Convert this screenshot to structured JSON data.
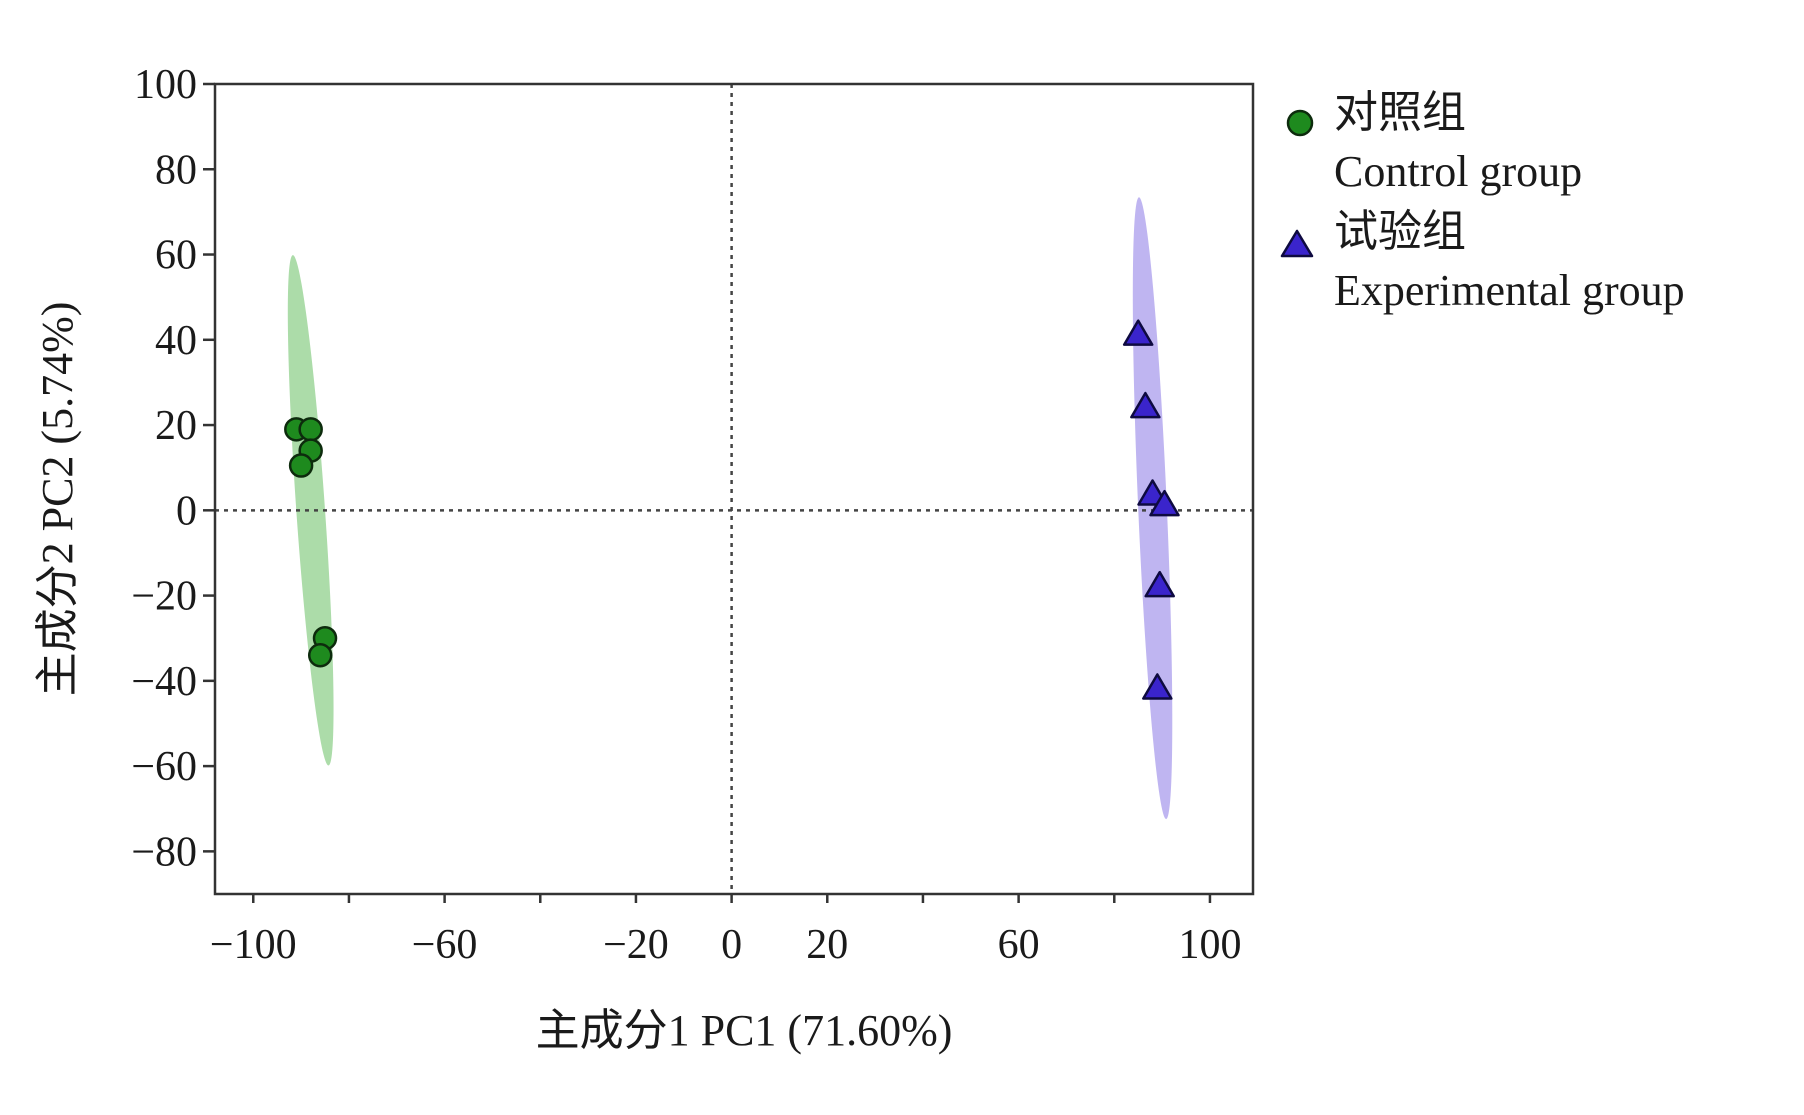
{
  "chart_data": {
    "type": "scatter",
    "xlabel": "主成分1 PC1 (71.60%)",
    "ylabel": "主成分2 PC2 (5.74%)",
    "xlim": [
      -108,
      109
    ],
    "ylim": [
      -90,
      100
    ],
    "x_ticks": [
      -100,
      -80,
      -60,
      -40,
      -20,
      0,
      20,
      40,
      60,
      80,
      100
    ],
    "x_tick_labels": [
      "−100",
      "",
      "−60",
      "",
      "−20",
      "0",
      "20",
      "",
      "60",
      "",
      "100"
    ],
    "y_ticks": [
      -80,
      -60,
      -40,
      -20,
      0,
      20,
      40,
      60,
      80,
      100
    ],
    "y_tick_labels": [
      "−80",
      "−60",
      "−40",
      "−20",
      "0",
      "20",
      "40",
      "60",
      "80",
      "100"
    ],
    "reference_lines": {
      "x": 0,
      "y": 0,
      "style": "dotted"
    },
    "grid": false,
    "legend_position": "right-top",
    "series": [
      {
        "name_cn": "对照组",
        "name_en": "Control group",
        "marker": "circle",
        "color": "#1e8a1e",
        "ellipse_color": "#9ed69a",
        "points": [
          [
            -91,
            19
          ],
          [
            -88,
            19
          ],
          [
            -88,
            14
          ],
          [
            -90,
            10.5
          ],
          [
            -85,
            -30
          ],
          [
            -86,
            -34
          ]
        ],
        "ellipse": {
          "cx": -88,
          "cy": 0,
          "rx": 3,
          "ry": 60,
          "angle_deg": -4
        }
      },
      {
        "name_cn": "试验组",
        "name_en": "Experimental group",
        "marker": "triangle",
        "color": "#3a24cc",
        "ellipse_color": "#b4a8ee",
        "points": [
          [
            85,
            41
          ],
          [
            86.5,
            24
          ],
          [
            88,
            3.5
          ],
          [
            90.5,
            1
          ],
          [
            89.5,
            -18
          ],
          [
            89,
            -42
          ]
        ],
        "ellipse": {
          "cx": 88,
          "cy": 0.5,
          "rx": 3,
          "ry": 73,
          "angle_deg": -2.5
        }
      }
    ]
  }
}
